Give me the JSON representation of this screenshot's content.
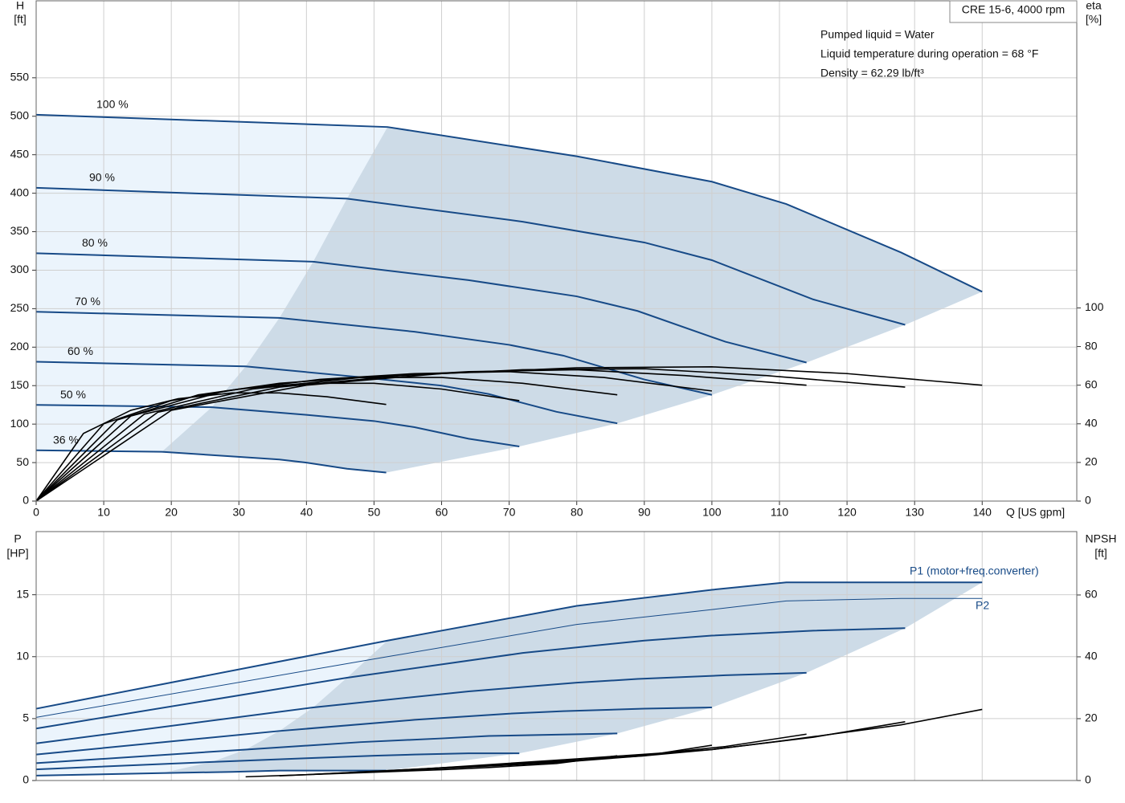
{
  "chart_data": [
    {
      "type": "line",
      "title": "CRE 15-6, 4000 rpm",
      "annotations": [
        "Pumped liquid = Water",
        "Liquid temperature during operation = 68 °F",
        "Density = 62.29 lb/ft³"
      ],
      "x_label": "Q [US gpm]",
      "y_label": "H",
      "y_unit": "[ft]",
      "y2_label": "eta",
      "y2_unit": "[%]",
      "xlim": [
        0,
        154
      ],
      "xticks": [
        0,
        10,
        20,
        30,
        40,
        50,
        60,
        70,
        80,
        90,
        100,
        110,
        120,
        130,
        140
      ],
      "ylim": [
        0,
        650
      ],
      "yticks": [
        0,
        50,
        100,
        150,
        200,
        250,
        300,
        350,
        400,
        450,
        500,
        550
      ],
      "y2lim": [
        0,
        259
      ],
      "y2ticks": [
        0,
        20,
        40,
        60,
        80,
        100
      ],
      "grid": true,
      "series": [
        {
          "name": "100 %",
          "color": "#174a87",
          "x": [
            0,
            52,
            80,
            100,
            111,
            128,
            140
          ],
          "values": [
            502,
            486,
            448,
            415,
            386,
            323,
            272
          ]
        },
        {
          "name": "90 %",
          "color": "#174a87",
          "x": [
            0,
            46,
            72,
            90,
            100,
            115,
            128.6
          ],
          "values": [
            407,
            393,
            363,
            336,
            313,
            262,
            229
          ]
        },
        {
          "name": "80 %",
          "color": "#174a87",
          "x": [
            0,
            41,
            64,
            80,
            89,
            102,
            114
          ],
          "values": [
            322,
            311,
            287,
            266,
            247,
            207,
            180
          ]
        },
        {
          "name": "70 %",
          "color": "#174a87",
          "x": [
            0,
            36,
            56,
            70,
            78,
            90,
            100
          ],
          "values": [
            246,
            238,
            220,
            203,
            189,
            158,
            138
          ]
        },
        {
          "name": "60 %",
          "color": "#174a87",
          "x": [
            0,
            31,
            48,
            60,
            67,
            77,
            86
          ],
          "values": [
            181,
            175,
            161,
            150,
            139,
            116,
            101
          ]
        },
        {
          "name": "50 %",
          "color": "#174a87",
          "x": [
            0,
            26,
            40,
            50,
            56,
            64,
            71.5
          ],
          "values": [
            125,
            122,
            112,
            104,
            96,
            81,
            71
          ]
        },
        {
          "name": "36 %",
          "color": "#174a87",
          "x": [
            0,
            18.6,
            29,
            36,
            40,
            46,
            51.8
          ],
          "values": [
            66,
            64,
            58,
            54,
            50,
            42,
            37
          ]
        },
        {
          "color": "#000000",
          "axis": "y2",
          "x": [
            0,
            20,
            40,
            60,
            80,
            100,
            120,
            140
          ],
          "values": [
            0,
            47,
            60,
            66,
            69,
            69.5,
            66,
            60
          ]
        },
        {
          "color": "#000000",
          "axis": "y2",
          "x": [
            0,
            18,
            36,
            54,
            72,
            90,
            108,
            128.6
          ],
          "values": [
            0,
            46,
            59,
            65,
            68,
            68.5,
            65,
            59
          ]
        },
        {
          "color": "#000000",
          "axis": "y2",
          "x": [
            0,
            16,
            32,
            48,
            64,
            80,
            96,
            114
          ],
          "values": [
            0,
            45,
            58,
            64,
            67,
            68,
            65,
            60
          ]
        },
        {
          "color": "#000000",
          "axis": "y2",
          "x": [
            0,
            14,
            28,
            42,
            56,
            70,
            84,
            100
          ],
          "values": [
            0,
            44,
            57,
            63,
            66,
            67,
            64,
            57
          ]
        },
        {
          "color": "#000000",
          "axis": "y2",
          "x": [
            0,
            12,
            24,
            36,
            48,
            60,
            72,
            86
          ],
          "values": [
            0,
            42,
            55,
            61,
            64,
            64,
            61,
            55
          ]
        },
        {
          "color": "#000000",
          "axis": "y2",
          "x": [
            0,
            10,
            20,
            30,
            40,
            50,
            60,
            71.5
          ],
          "values": [
            0,
            40,
            52,
            58,
            61,
            61,
            58,
            52
          ]
        },
        {
          "color": "#000000",
          "axis": "y2",
          "x": [
            0,
            7,
            14,
            21,
            29,
            36,
            43,
            51.8
          ],
          "values": [
            0,
            35,
            47,
            53,
            56,
            56,
            54,
            50
          ]
        }
      ]
    },
    {
      "type": "line",
      "annotations": [
        "P1 (motor+freq.converter)",
        "P2"
      ],
      "y_label": "P",
      "y_unit": "[HP]",
      "y2_label": "NPSH",
      "y2_unit": "[ft]",
      "xlim": [
        0,
        154
      ],
      "ylim": [
        0,
        20.1
      ],
      "yticks": [
        0,
        5,
        10,
        15
      ],
      "y2lim": [
        0,
        80.5
      ],
      "y2ticks": [
        0,
        20,
        40,
        60
      ],
      "grid": true,
      "series": [
        {
          "color": "#174a87",
          "x": [
            0,
            52,
            80,
            100,
            111,
            128,
            140
          ],
          "values": [
            5.8,
            11.3,
            14.1,
            15.4,
            16,
            16,
            16
          ]
        },
        {
          "color": "#174a87",
          "x": [
            0,
            46,
            72,
            90,
            100,
            115,
            128.6
          ],
          "values": [
            4.2,
            8.3,
            10.3,
            11.3,
            11.7,
            12.1,
            12.3
          ]
        },
        {
          "color": "#174a87",
          "x": [
            0,
            41,
            64,
            80,
            89,
            102,
            114
          ],
          "values": [
            3.0,
            5.9,
            7.2,
            7.9,
            8.2,
            8.5,
            8.7
          ]
        },
        {
          "color": "#174a87",
          "x": [
            0,
            36,
            56,
            70,
            78,
            90,
            100
          ],
          "values": [
            2.1,
            4.0,
            4.9,
            5.4,
            5.6,
            5.8,
            5.9
          ]
        },
        {
          "color": "#174a87",
          "x": [
            0,
            31,
            48,
            60,
            67,
            77,
            86
          ],
          "values": [
            1.4,
            2.5,
            3.1,
            3.4,
            3.6,
            3.7,
            3.8
          ]
        },
        {
          "color": "#174a87",
          "x": [
            0,
            26,
            40,
            50,
            56,
            64,
            71.5
          ],
          "values": [
            0.9,
            1.5,
            1.8,
            2.0,
            2.1,
            2.2,
            2.2
          ]
        },
        {
          "color": "#174a87",
          "x": [
            0,
            18.6,
            29,
            36,
            40,
            46,
            51.8
          ],
          "values": [
            0.4,
            0.6,
            0.7,
            0.8,
            0.8,
            0.8,
            0.8
          ]
        },
        {
          "color": "#174a87",
          "x": [
            0,
            52,
            80,
            100,
            111,
            128,
            140
          ],
          "values": [
            5.1,
            10,
            12.6,
            13.8,
            14.5,
            14.7,
            14.7
          ]
        },
        {
          "color": "#000000",
          "axis": "y2",
          "x": [
            52,
            80,
            100,
            111,
            128,
            140
          ],
          "values": [
            3,
            7,
            10,
            13,
            18,
            23
          ]
        },
        {
          "color": "#000000",
          "axis": "y2",
          "x": [
            46,
            72,
            90,
            100,
            115,
            128.6
          ],
          "values": [
            2.5,
            5.5,
            8,
            10,
            14,
            19
          ]
        },
        {
          "color": "#000000",
          "axis": "y2",
          "x": [
            41,
            64,
            80,
            89,
            102,
            114
          ],
          "values": [
            2,
            4.5,
            6.5,
            8,
            11,
            15
          ]
        },
        {
          "color": "#000000",
          "axis": "y2",
          "x": [
            36,
            56,
            70,
            78,
            90,
            100
          ],
          "values": [
            1.5,
            3.5,
            5,
            6,
            8,
            11.4
          ]
        },
        {
          "color": "#000000",
          "axis": "y2",
          "x": [
            31,
            48,
            60,
            67,
            77,
            86
          ],
          "values": [
            1.2,
            2.5,
            3.5,
            4.2,
            5.5,
            8
          ]
        }
      ]
    }
  ]
}
